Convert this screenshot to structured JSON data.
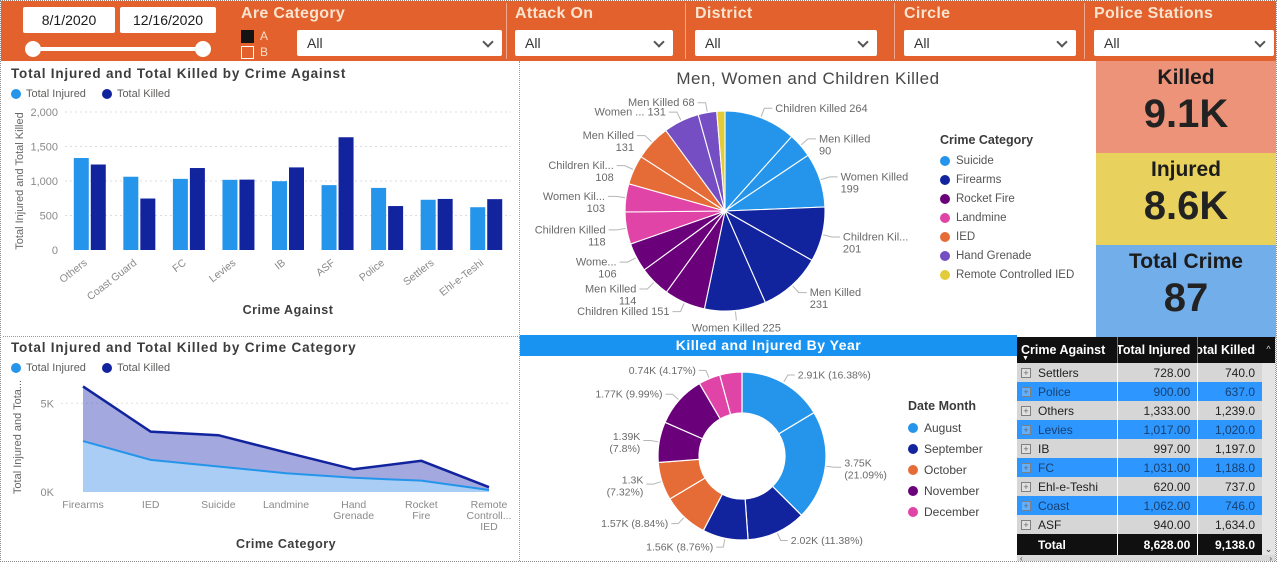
{
  "topbar": {
    "bar_color": "#E2612C",
    "date_from": "8/1/2020",
    "date_to": "12/16/2020",
    "are_category": {
      "label": "Are Category",
      "option_a": "A",
      "option_b": "B",
      "checked": "A",
      "value": "All"
    },
    "filters": [
      {
        "label": "Attack On",
        "value": "All"
      },
      {
        "label": "District",
        "value": "All"
      },
      {
        "label": "Circle",
        "value": "All"
      },
      {
        "label": "Police Stations",
        "value": "All"
      }
    ]
  },
  "kpis": [
    {
      "label": "Killed",
      "value": "9.1K",
      "color": "#EC9379"
    },
    {
      "label": "Injured",
      "value": "8.6K",
      "color": "#E8D15C"
    },
    {
      "label": "Total Crime",
      "value": "87",
      "color": "#72AEE9"
    }
  ],
  "chart_data": [
    {
      "id": "bar-injured-killed-by-crime-against",
      "type": "bar",
      "title": "Total Injured and Total Killed by Crime Against",
      "xlabel": "Crime Against",
      "ylabel": "Total Injured and Total Killed",
      "ylim": [
        0,
        2000
      ],
      "grid": true,
      "yticks": [
        {
          "v": 0,
          "label": "0"
        },
        {
          "v": 500,
          "label": "500"
        },
        {
          "v": 1000,
          "label": "1,000"
        },
        {
          "v": 1500,
          "label": "1,500"
        },
        {
          "v": 2000,
          "label": "2,000"
        }
      ],
      "categories": [
        "Others",
        "Coast Guard",
        "FC",
        "Levies",
        "IB",
        "ASF",
        "Police",
        "Settlers",
        "Ehl-e-Teshi"
      ],
      "series": [
        {
          "name": "Total Injured",
          "color": "#2495EA",
          "values": [
            1333,
            1062,
            1031,
            1017,
            997,
            940,
            900,
            728,
            620
          ]
        },
        {
          "name": "Total Killed",
          "color": "#12239E",
          "values": [
            1239,
            746,
            1188,
            1020,
            1197,
            1634,
            637,
            740,
            737
          ]
        }
      ]
    },
    {
      "id": "pie-men-women-children-killed",
      "type": "pie",
      "title": "Men, Women and Children Killed",
      "legend_title": "Crime Category",
      "legend_position": "right",
      "legend": [
        {
          "label": "Suicide",
          "color": "#2495EA"
        },
        {
          "label": "Firearms",
          "color": "#12239E"
        },
        {
          "label": "Rocket Fire",
          "color": "#6B007B"
        },
        {
          "label": "Landmine",
          "color": "#E044A7"
        },
        {
          "label": "IED",
          "color": "#E66C37"
        },
        {
          "label": "Hand Grenade",
          "color": "#744EC2"
        },
        {
          "label": "Remote Controlled IED",
          "color": "#E3CC39"
        }
      ],
      "slices": [
        {
          "label": "Children Killed 264",
          "value": 264,
          "category": "Suicide"
        },
        {
          "label": "Men Killed 90",
          "value": 90,
          "category": "Suicide"
        },
        {
          "label": "Women Killed 199",
          "value": 199,
          "category": "Suicide"
        },
        {
          "label": "Children Kil... 201",
          "value": 201,
          "category": "Firearms"
        },
        {
          "label": "Men Killed 231",
          "value": 231,
          "category": "Firearms"
        },
        {
          "label": "Women Killed 225",
          "value": 225,
          "category": "Firearms"
        },
        {
          "label": "Children Killed 151",
          "value": 151,
          "category": "Rocket Fire"
        },
        {
          "label": "Men Killed 114",
          "value": 114,
          "category": "Rocket Fire"
        },
        {
          "label": "Wome... 106",
          "value": 106,
          "category": "Rocket Fire"
        },
        {
          "label": "Children Killed 118",
          "value": 118,
          "category": "Landmine"
        },
        {
          "label": "Women Kil... 103",
          "value": 103,
          "category": "Landmine"
        },
        {
          "label": "Children Kil... 108",
          "value": 108,
          "category": "IED"
        },
        {
          "label": "Men Killed 131",
          "value": 131,
          "category": "IED"
        },
        {
          "label": "Women ... 131",
          "value": 131,
          "category": "Hand Grenade"
        },
        {
          "label": "Men Killed 68",
          "value": 68,
          "category": "Hand Grenade"
        },
        {
          "label": "",
          "value": 30,
          "category": "Remote Controlled IED"
        }
      ]
    },
    {
      "id": "area-injured-killed-by-crime-category",
      "type": "area",
      "title": "Total Injured and Total Killed by Crime Category",
      "xlabel": "Crime Category",
      "ylabel": "Total Injured and Tota...",
      "ylim": [
        0,
        6200
      ],
      "grid": true,
      "yticks": [
        {
          "v": 0,
          "label": "0K"
        },
        {
          "v": 5000,
          "label": "5K"
        }
      ],
      "categories": [
        "Firearms",
        "IED",
        "Suicide",
        "Landmine",
        "Hand Grenade",
        "Rocket Fire",
        "Remote Controll... IED"
      ],
      "series": [
        {
          "name": "Total Injured",
          "color": "#2495EA",
          "fill": "#A9CDF5",
          "values": [
            2870,
            1810,
            1440,
            1060,
            800,
            640,
            110
          ]
        },
        {
          "name": "Total Killed",
          "color": "#12239E",
          "fill": "rgba(72,82,190,0.5)",
          "values": [
            5950,
            3400,
            3200,
            2230,
            1280,
            1760,
            270
          ]
        }
      ]
    },
    {
      "id": "donut-killed-injured-by-year",
      "type": "donut",
      "title": "Killed and Injured By Year",
      "title_bar_color": "#1893F2",
      "legend_title": "Date Month",
      "legend_position": "right",
      "legend": [
        {
          "label": "August",
          "color": "#2495EA"
        },
        {
          "label": "September",
          "color": "#12239E"
        },
        {
          "label": "October",
          "color": "#E66C37"
        },
        {
          "label": "November",
          "color": "#6B007B"
        },
        {
          "label": "December",
          "color": "#E044A7"
        }
      ],
      "slices": [
        {
          "label": "2.91K (16.38%)",
          "pct": 16.38,
          "month": "August"
        },
        {
          "label": "3.75K (21.09%)",
          "pct": 21.09,
          "month": "August"
        },
        {
          "label": "2.02K (11.38%)",
          "pct": 11.38,
          "month": "September"
        },
        {
          "label": "1.56K (8.76%)",
          "pct": 8.76,
          "month": "September"
        },
        {
          "label": "1.57K (8.84%)",
          "pct": 8.84,
          "month": "October"
        },
        {
          "label": "1.3K (7.32%)",
          "pct": 7.32,
          "month": "October"
        },
        {
          "label": "1.39K (7.8%)",
          "pct": 7.8,
          "month": "November"
        },
        {
          "label": "1.77K (9.99%)",
          "pct": 9.99,
          "month": "November"
        },
        {
          "label": "0.74K (4.17%)",
          "pct": 4.17,
          "month": "December"
        },
        {
          "label": "",
          "pct": 4.27,
          "month": "December"
        }
      ]
    },
    {
      "id": "table-crime-against",
      "type": "table",
      "headers": [
        "Crime Against",
        "Total Injured",
        "Total Killed"
      ],
      "rows": [
        [
          "Settlers",
          "728.00",
          "740.0"
        ],
        [
          "Police",
          "900.00",
          "637.0"
        ],
        [
          "Others",
          "1,333.00",
          "1,239.0"
        ],
        [
          "Levies",
          "1,017.00",
          "1,020.0"
        ],
        [
          "IB",
          "997.00",
          "1,197.0"
        ],
        [
          "FC",
          "1,031.00",
          "1,188.0"
        ],
        [
          "Ehl-e-Teshi",
          "620.00",
          "737.0"
        ],
        [
          "Coast",
          "1,062.00",
          "746.0"
        ],
        [
          "ASF",
          "940.00",
          "1,634.0"
        ]
      ],
      "total": [
        "Total",
        "8,628.00",
        "9,138.0"
      ]
    }
  ]
}
